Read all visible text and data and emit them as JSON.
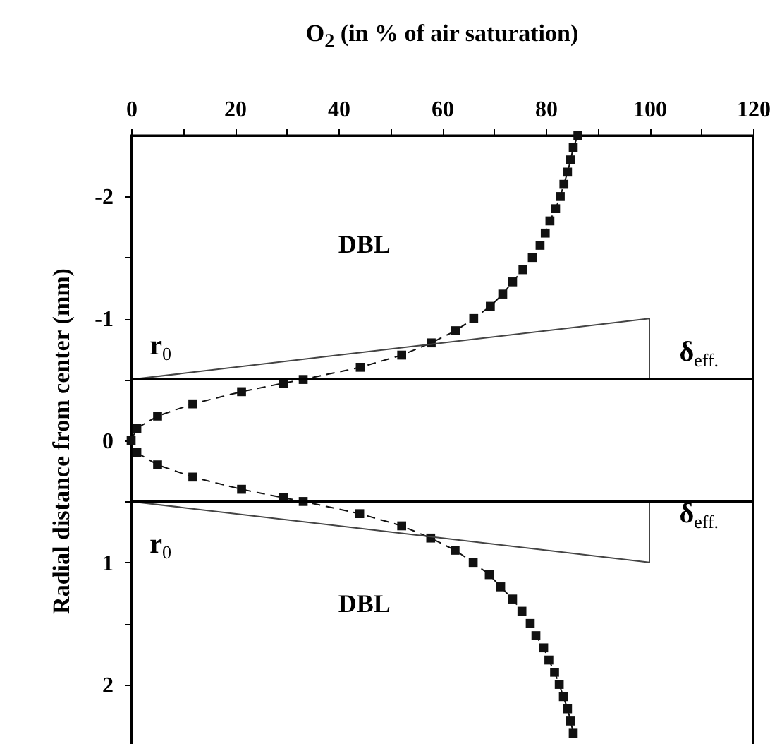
{
  "chart_data": {
    "type": "line",
    "xlabel": "O$_{2}$ (in % of air saturation)",
    "ylabel": "Radial distance from center (mm)",
    "xlim": [
      0,
      120
    ],
    "xticks": [
      0,
      {
        "value": 10,
        "label": null
      },
      20,
      {
        "value": 30,
        "label": null
      },
      40,
      {
        "value": 50,
        "label": null
      },
      60,
      {
        "value": 70,
        "label": null
      },
      80,
      {
        "value": 90,
        "label": null
      },
      100,
      {
        "value": 110,
        "label": null
      },
      120
    ],
    "ylim": [
      2.5,
      -2.5
    ],
    "yticks": [
      -2,
      {
        "value": -1.5,
        "label": null
      },
      -1,
      {
        "value": -0.5,
        "label": null
      },
      0,
      {
        "value": 0.5,
        "label": null
      },
      1,
      {
        "value": 1.5,
        "label": null
      },
      2
    ],
    "marker": "square",
    "line_style": "dashed",
    "series": [
      {
        "color": "#111111",
        "x": [
          0,
          1.1,
          5.1,
          11.9,
          21.3,
          29.4,
          33.2,
          44.2,
          52.2,
          57.9,
          62.6,
          66.1,
          69.3,
          71.7,
          73.6,
          75.6,
          77.4,
          78.9,
          79.9,
          80.8,
          81.9,
          82.8,
          83.5,
          84.2,
          84.8,
          85.3,
          86.2
        ],
        "values": [
          0,
          -0.1,
          -0.2,
          -0.3,
          -0.4,
          -0.47,
          -0.5,
          -0.6,
          -0.7,
          -0.8,
          -0.9,
          -1.0,
          -1.1,
          -1.2,
          -1.3,
          -1.4,
          -1.5,
          -1.6,
          -1.7,
          -1.8,
          -1.9,
          -2.0,
          -2.1,
          -2.2,
          -2.3,
          -2.4,
          -2.5
        ]
      },
      {
        "color": "#111111",
        "x": [
          1.1,
          5.1,
          11.9,
          21.3,
          29.4,
          33.2,
          44.1,
          52.2,
          57.8,
          62.5,
          66.0,
          69.1,
          71.3,
          73.6,
          75.4,
          77.0,
          78.1,
          79.6,
          80.6,
          81.7,
          82.6,
          83.4,
          84.2,
          84.8,
          85.3
        ],
        "values": [
          0.1,
          0.2,
          0.3,
          0.4,
          0.47,
          0.5,
          0.6,
          0.7,
          0.8,
          0.9,
          1.0,
          1.1,
          1.2,
          1.3,
          1.4,
          1.5,
          1.6,
          1.7,
          1.8,
          1.9,
          2.0,
          2.1,
          2.2,
          2.3,
          2.4
        ]
      },
      {
        "type": "line",
        "color": "#444444",
        "marker": "none",
        "line_style": "solid",
        "x": [
          0,
          100,
          100
        ],
        "values": [
          -0.5,
          -1.0,
          -0.5
        ]
      },
      {
        "type": "line",
        "color": "#444444",
        "marker": "none",
        "line_style": "solid",
        "x": [
          0,
          100,
          100
        ],
        "values": [
          0.5,
          1.0,
          0.5
        ]
      }
    ],
    "ref_lines": [
      {
        "axis": "y",
        "value": -0.5
      },
      {
        "axis": "y",
        "value": 0.5
      }
    ],
    "annotations": [
      "DBL",
      "DBL",
      "r$_{0}$",
      "r$_{0}$",
      "δ$_{eff.}$",
      "δ$_{eff.}$"
    ]
  }
}
